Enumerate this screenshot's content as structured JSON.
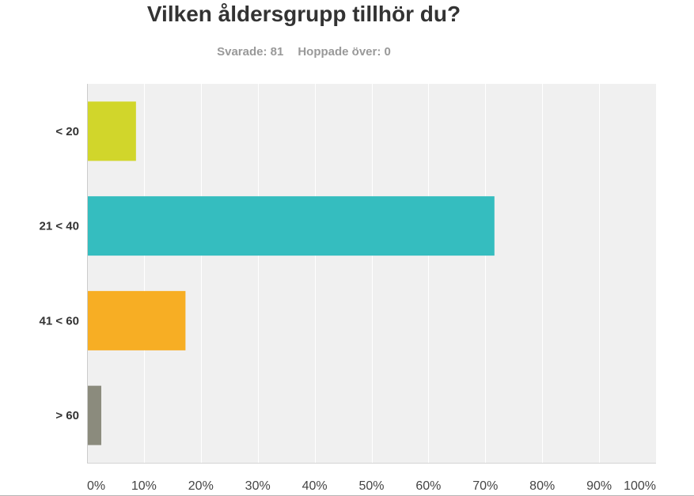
{
  "header": {
    "title": "Vilken åldersgrupp tillhör du?",
    "answered_label": "Svarade: 81",
    "skipped_label": "Hoppade över: 0"
  },
  "chart_data": {
    "type": "bar",
    "orientation": "horizontal",
    "categories": [
      "< 20",
      "21 < 40",
      "41 < 60",
      "> 60"
    ],
    "values": [
      8.6,
      71.6,
      17.3,
      2.5
    ],
    "colors": [
      "#d1d62b",
      "#35bdbf",
      "#f7ae24",
      "#8b8b7d"
    ],
    "xlim": [
      0,
      100
    ],
    "xticks": [
      "0%",
      "10%",
      "20%",
      "30%",
      "40%",
      "50%",
      "60%",
      "70%",
      "80%",
      "90%",
      "100%"
    ],
    "grid": true,
    "plot_background": "#f0f0f0",
    "grid_color": "#ffffff",
    "title": "Vilken åldersgrupp tillhör du?",
    "xlabel": "",
    "ylabel": ""
  }
}
